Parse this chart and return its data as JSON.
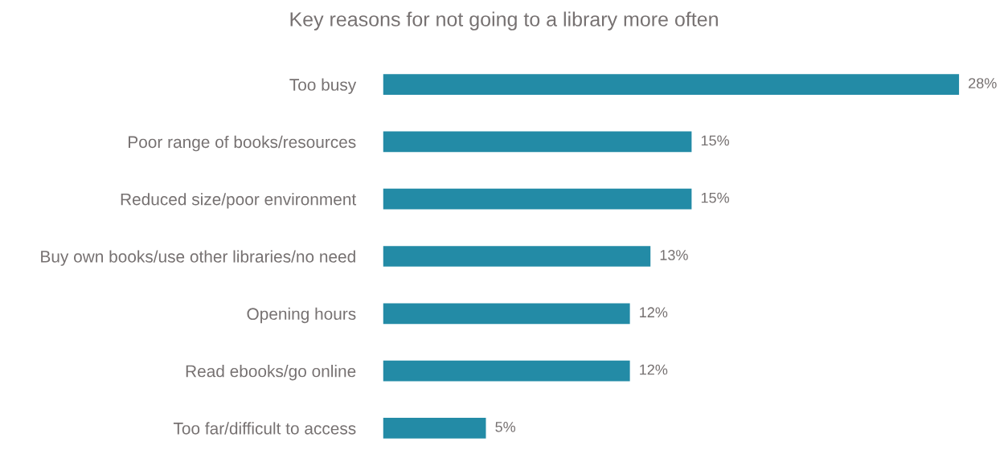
{
  "chart_data": {
    "type": "bar",
    "orientation": "horizontal",
    "title": "Key reasons for not going to a library more often",
    "categories": [
      "Too busy",
      "Poor range of books/resources",
      "Reduced size/poor environment",
      "Buy own books/use other libraries/no need",
      "Opening hours",
      "Read ebooks/go online",
      "Too far/difficult to access"
    ],
    "values": [
      28,
      15,
      15,
      13,
      12,
      12,
      5
    ],
    "value_labels": [
      "28%",
      "15%",
      "15%",
      "13%",
      "12%",
      "12%",
      "5%"
    ],
    "color": "#238ba6",
    "grid": false,
    "legend": false,
    "tick_labels": "y"
  }
}
